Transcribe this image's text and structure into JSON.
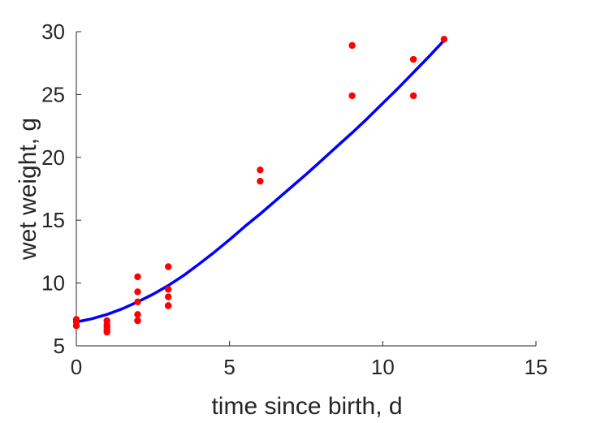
{
  "chart_data": {
    "type": "scatter",
    "xlabel": "time since birth, d",
    "ylabel": "wet weight, g",
    "xlim": [
      0,
      15
    ],
    "ylim": [
      5,
      30
    ],
    "xticks": [
      "0",
      "5",
      "10",
      "15"
    ],
    "yticks": [
      "5",
      "10",
      "15",
      "20",
      "25",
      "30"
    ],
    "grid": false,
    "box": false,
    "series": [
      {
        "kind": "points",
        "color": "#ff0000",
        "x": [
          0,
          0,
          0,
          1,
          1,
          1,
          1,
          1,
          2,
          2,
          2,
          2,
          2,
          2,
          3,
          3,
          3,
          3,
          3,
          6,
          6,
          9,
          9,
          11,
          11,
          12
        ],
        "y": [
          7.1,
          6.9,
          6.6,
          7.0,
          6.7,
          6.5,
          6.3,
          6.1,
          10.5,
          9.3,
          8.5,
          7.5,
          7.0,
          7.0,
          11.3,
          9.5,
          8.9,
          8.2,
          8.2,
          19.0,
          18.1,
          28.9,
          24.9,
          27.8,
          24.9,
          29.4
        ]
      },
      {
        "kind": "line",
        "color": "#0000ff",
        "x": [
          0,
          0.5,
          1,
          1.5,
          2,
          2.5,
          3,
          3.5,
          4,
          4.5,
          5,
          5.5,
          6,
          6.5,
          7,
          7.5,
          8,
          8.5,
          9,
          9.5,
          10,
          10.5,
          11,
          11.5,
          12
        ],
        "y": [
          6.9,
          7.15,
          7.5,
          7.95,
          8.5,
          9.1,
          9.8,
          10.6,
          11.5,
          12.45,
          13.45,
          14.5,
          15.5,
          16.55,
          17.6,
          18.65,
          19.75,
          20.85,
          21.95,
          23.1,
          24.3,
          25.5,
          26.75,
          28.0,
          29.3
        ]
      }
    ]
  }
}
